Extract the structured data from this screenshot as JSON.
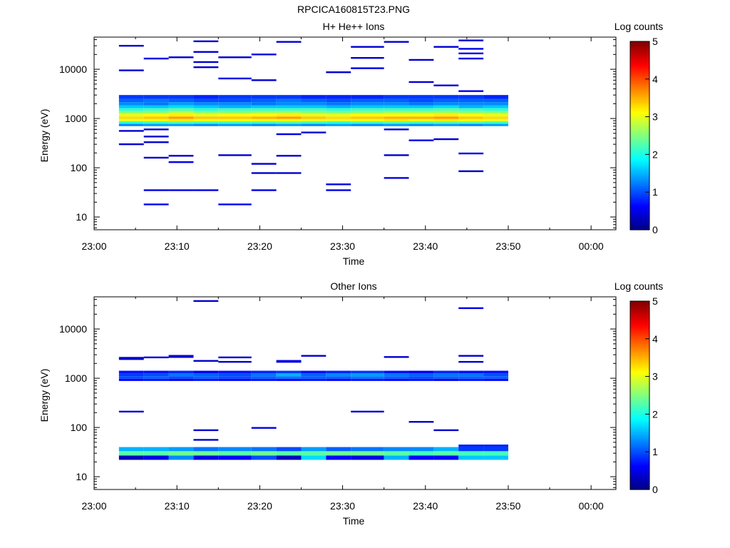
{
  "figure_title": "RPCICA160815T23.PNG",
  "chart_data": [
    {
      "type": "heatmap",
      "title": "H+ He++ Ions",
      "xlabel": "Time",
      "ylabel": "Energy (eV)",
      "colorbar_label": "Log counts",
      "x_range": [
        "23:00",
        "00:03"
      ],
      "x_ticks": [
        "23:00",
        "23:10",
        "23:20",
        "23:30",
        "23:40",
        "23:50",
        "00:00"
      ],
      "y_scale": "log",
      "y_range": [
        5.5,
        45000
      ],
      "y_ticks": [
        "10",
        "100",
        "1000",
        "10000"
      ],
      "colorbar_ticks": [
        "0",
        "1",
        "2",
        "3",
        "4",
        "5"
      ],
      "colorbar_range": [
        0,
        5
      ],
      "colormap": [
        "#000080",
        "#0000ff",
        "#0080ff",
        "#00ffff",
        "#80ff80",
        "#ffff00",
        "#ff8000",
        "#ff0000",
        "#800000"
      ],
      "time_columns": [
        "23:03",
        "23:06",
        "23:09",
        "23:12",
        "23:15",
        "23:19",
        "23:22",
        "23:25",
        "23:28",
        "23:31",
        "23:35",
        "23:38",
        "23:41",
        "23:44",
        "23:47"
      ],
      "band": {
        "energy_edges": [
          700,
          780,
          880,
          980,
          1100,
          1260,
          1420,
          1620,
          1850,
          2150,
          2500,
          3000
        ],
        "column_values": [
          [
            1.3,
            2.1,
            3.0,
            3.3,
            3.0,
            2.6,
            2.1,
            1.6,
            1.3,
            1.1,
            0.9
          ],
          [
            1.4,
            2.2,
            3.1,
            3.4,
            3.1,
            2.6,
            2.2,
            1.6,
            1.2,
            1.2,
            0.9
          ],
          [
            1.4,
            2.3,
            3.2,
            3.6,
            3.2,
            2.8,
            2.3,
            1.7,
            1.4,
            1.1,
            0.9
          ],
          [
            1.3,
            2.2,
            3.1,
            3.4,
            3.0,
            2.6,
            2.1,
            1.6,
            1.3,
            1.0,
            0.8
          ],
          [
            1.4,
            2.2,
            3.1,
            3.4,
            3.1,
            2.6,
            2.2,
            1.5,
            1.3,
            1.0,
            0.9
          ],
          [
            1.3,
            2.2,
            3.1,
            3.5,
            3.1,
            2.7,
            2.2,
            1.6,
            1.2,
            1.1,
            0.9
          ],
          [
            1.4,
            2.3,
            3.1,
            3.6,
            3.2,
            2.7,
            2.2,
            1.6,
            1.3,
            1.2,
            0.9
          ],
          [
            1.3,
            2.2,
            3.0,
            3.4,
            3.0,
            2.6,
            2.2,
            1.6,
            1.3,
            1.1,
            0.8
          ],
          [
            1.4,
            2.1,
            3.0,
            3.3,
            3.0,
            2.5,
            2.1,
            1.5,
            1.2,
            1.0,
            0.8
          ],
          [
            1.3,
            2.2,
            3.1,
            3.4,
            3.1,
            2.6,
            2.2,
            1.6,
            1.3,
            1.1,
            0.8
          ],
          [
            1.4,
            2.3,
            3.2,
            3.5,
            3.1,
            2.7,
            2.2,
            1.6,
            1.3,
            1.1,
            0.9
          ],
          [
            1.3,
            2.2,
            3.1,
            3.5,
            3.1,
            2.7,
            2.2,
            1.6,
            1.2,
            1.0,
            0.9
          ],
          [
            1.4,
            2.3,
            3.2,
            3.6,
            3.2,
            2.7,
            2.3,
            1.7,
            1.3,
            1.1,
            0.9
          ],
          [
            1.3,
            2.3,
            3.1,
            3.4,
            3.1,
            2.6,
            2.2,
            1.5,
            1.3,
            1.1,
            0.9
          ],
          [
            1.4,
            2.2,
            3.0,
            3.3,
            3.0,
            2.6,
            2.1,
            1.6,
            1.3,
            1.1,
            0.8
          ]
        ]
      },
      "sparse_cells": [
        {
          "t": 0,
          "e": 30000,
          "v": 0.4
        },
        {
          "t": 0,
          "e": 9500,
          "v": 0.4
        },
        {
          "t": 0,
          "e": 560,
          "v": 0.4
        },
        {
          "t": 0,
          "e": 300,
          "v": 0.4
        },
        {
          "t": 1,
          "e": 16500,
          "v": 0.5
        },
        {
          "t": 1,
          "e": 600,
          "v": 0.4
        },
        {
          "t": 1,
          "e": 430,
          "v": 0.4
        },
        {
          "t": 1,
          "e": 330,
          "v": 0.4
        },
        {
          "t": 1,
          "e": 160,
          "v": 0.4
        },
        {
          "t": 1,
          "e": 35,
          "v": 0.5
        },
        {
          "t": 1,
          "e": 18,
          "v": 0.6
        },
        {
          "t": 2,
          "e": 17500,
          "v": 0.4
        },
        {
          "t": 2,
          "e": 175,
          "v": 0.4
        },
        {
          "t": 2,
          "e": 130,
          "v": 0.5
        },
        {
          "t": 2,
          "e": 35,
          "v": 0.5
        },
        {
          "t": 3,
          "e": 37000,
          "v": 0.4
        },
        {
          "t": 3,
          "e": 22500,
          "v": 0.4
        },
        {
          "t": 3,
          "e": 14000,
          "v": 0.4
        },
        {
          "t": 3,
          "e": 11000,
          "v": 0.4
        },
        {
          "t": 3,
          "e": 35,
          "v": 0.5
        },
        {
          "t": 4,
          "e": 17500,
          "v": 0.4
        },
        {
          "t": 4,
          "e": 6500,
          "v": 0.5
        },
        {
          "t": 4,
          "e": 180,
          "v": 0.4
        },
        {
          "t": 4,
          "e": 18,
          "v": 0.6
        },
        {
          "t": 5,
          "e": 20000,
          "v": 0.5
        },
        {
          "t": 5,
          "e": 6000,
          "v": 0.4
        },
        {
          "t": 5,
          "e": 120,
          "v": 0.4
        },
        {
          "t": 5,
          "e": 78,
          "v": 0.4
        },
        {
          "t": 5,
          "e": 35,
          "v": 0.5
        },
        {
          "t": 6,
          "e": 36000,
          "v": 0.4
        },
        {
          "t": 6,
          "e": 480,
          "v": 0.5
        },
        {
          "t": 6,
          "e": 175,
          "v": 0.4
        },
        {
          "t": 6,
          "e": 78,
          "v": 0.4
        },
        {
          "t": 7,
          "e": 520,
          "v": 0.4
        },
        {
          "t": 8,
          "e": 8700,
          "v": 0.4
        },
        {
          "t": 8,
          "e": 46,
          "v": 0.5
        },
        {
          "t": 8,
          "e": 35,
          "v": 0.5
        },
        {
          "t": 9,
          "e": 28500,
          "v": 0.4
        },
        {
          "t": 9,
          "e": 17000,
          "v": 0.4
        },
        {
          "t": 9,
          "e": 10500,
          "v": 0.5
        },
        {
          "t": 10,
          "e": 36000,
          "v": 0.4
        },
        {
          "t": 10,
          "e": 600,
          "v": 0.4
        },
        {
          "t": 10,
          "e": 180,
          "v": 0.4
        },
        {
          "t": 10,
          "e": 62,
          "v": 0.5
        },
        {
          "t": 11,
          "e": 15500,
          "v": 0.4
        },
        {
          "t": 11,
          "e": 5500,
          "v": 0.4
        },
        {
          "t": 11,
          "e": 360,
          "v": 0.5
        },
        {
          "t": 12,
          "e": 28500,
          "v": 0.4
        },
        {
          "t": 12,
          "e": 4700,
          "v": 0.4
        },
        {
          "t": 12,
          "e": 380,
          "v": 0.4
        },
        {
          "t": 13,
          "e": 38500,
          "v": 0.4
        },
        {
          "t": 13,
          "e": 26000,
          "v": 0.5
        },
        {
          "t": 13,
          "e": 21000,
          "v": 0.5
        },
        {
          "t": 13,
          "e": 16500,
          "v": 0.5
        },
        {
          "t": 13,
          "e": 3600,
          "v": 0.5
        },
        {
          "t": 13,
          "e": 195,
          "v": 0.5
        },
        {
          "t": 13,
          "e": 85,
          "v": 0.3
        }
      ]
    },
    {
      "type": "heatmap",
      "title": "Other Ions",
      "xlabel": "Time",
      "ylabel": "Energy (eV)",
      "colorbar_label": "Log counts",
      "x_range": [
        "23:00",
        "00:03"
      ],
      "x_ticks": [
        "23:00",
        "23:10",
        "23:20",
        "23:30",
        "23:40",
        "23:50",
        "00:00"
      ],
      "y_scale": "log",
      "y_range": [
        5.5,
        45000
      ],
      "y_ticks": [
        "10",
        "100",
        "1000",
        "10000"
      ],
      "colorbar_ticks": [
        "0",
        "1",
        "2",
        "3",
        "4",
        "5"
      ],
      "colorbar_range": [
        0,
        5
      ],
      "colormap": [
        "#000080",
        "#0000ff",
        "#0080ff",
        "#00ffff",
        "#80ff80",
        "#ffff00",
        "#ff8000",
        "#ff0000",
        "#800000"
      ],
      "time_columns": [
        "23:03",
        "23:06",
        "23:09",
        "23:12",
        "23:15",
        "23:19",
        "23:22",
        "23:25",
        "23:28",
        "23:31",
        "23:35",
        "23:38",
        "23:41",
        "23:44",
        "23:47"
      ],
      "band": {
        "energy_edges": [
          880,
          980,
          1100,
          1260,
          1420
        ],
        "column_values": [
          [
            0.6,
            1.0,
            0.9,
            0.7
          ],
          [
            0.7,
            1.1,
            1.0,
            0.7
          ],
          [
            0.5,
            1.0,
            1.2,
            0.8
          ],
          [
            0.7,
            1.1,
            1.1,
            0.6
          ],
          [
            0.6,
            1.0,
            1.0,
            0.7
          ],
          [
            0.7,
            1.1,
            1.2,
            0.8
          ],
          [
            0.6,
            1.2,
            1.5,
            0.9
          ],
          [
            0.7,
            1.1,
            1.1,
            0.7
          ],
          [
            0.6,
            1.1,
            1.3,
            0.8
          ],
          [
            0.7,
            1.2,
            1.4,
            0.9
          ],
          [
            0.6,
            1.1,
            1.2,
            0.7
          ],
          [
            0.7,
            1.0,
            1.1,
            0.6
          ],
          [
            0.5,
            1.1,
            1.2,
            0.8
          ],
          [
            0.7,
            1.1,
            1.2,
            0.7
          ],
          [
            0.6,
            1.1,
            1.0,
            0.7
          ]
        ]
      },
      "low_band": {
        "energy_edges": [
          22,
          27,
          33,
          40,
          45
        ],
        "column_values": [
          [
            0.3,
            2.3,
            1.5,
            0.0
          ],
          [
            0.5,
            2.3,
            1.5,
            0.0
          ],
          [
            1.3,
            2.4,
            1.4,
            0.0
          ],
          [
            0.5,
            2.4,
            1.2,
            0.0
          ],
          [
            0.6,
            2.3,
            1.3,
            0.0
          ],
          [
            1.0,
            2.4,
            1.2,
            0.0
          ],
          [
            0.3,
            2.3,
            1.0,
            0.0
          ],
          [
            1.7,
            2.3,
            1.4,
            0.0
          ],
          [
            0.6,
            2.4,
            1.1,
            0.0
          ],
          [
            0.5,
            2.4,
            1.2,
            0.0
          ],
          [
            1.5,
            2.3,
            1.3,
            0.0
          ],
          [
            0.6,
            2.2,
            1.3,
            0.0
          ],
          [
            0.6,
            2.3,
            1.5,
            0.0
          ],
          [
            1.6,
            2.2,
            0.9,
            0.8
          ],
          [
            1.6,
            2.2,
            0.9,
            0.8
          ]
        ]
      },
      "sparse_cells": [
        {
          "t": 0,
          "e": 2600,
          "v": 0.4
        },
        {
          "t": 0,
          "e": 2450,
          "v": 0.4
        },
        {
          "t": 0,
          "e": 210,
          "v": 0.4
        },
        {
          "t": 1,
          "e": 2650,
          "v": 0.4
        },
        {
          "t": 2,
          "e": 2850,
          "v": 0.4
        },
        {
          "t": 2,
          "e": 2700,
          "v": 0.4
        },
        {
          "t": 3,
          "e": 37000,
          "v": 0.4
        },
        {
          "t": 3,
          "e": 2250,
          "v": 0.4
        },
        {
          "t": 3,
          "e": 88,
          "v": 0.4
        },
        {
          "t": 3,
          "e": 56,
          "v": 0.4
        },
        {
          "t": 4,
          "e": 2650,
          "v": 0.4
        },
        {
          "t": 4,
          "e": 2150,
          "v": 0.4
        },
        {
          "t": 5,
          "e": 98,
          "v": 0.5
        },
        {
          "t": 6,
          "e": 2250,
          "v": 0.5
        },
        {
          "t": 6,
          "e": 2150,
          "v": 0.4
        },
        {
          "t": 7,
          "e": 2850,
          "v": 0.4
        },
        {
          "t": 9,
          "e": 210,
          "v": 0.4
        },
        {
          "t": 10,
          "e": 2700,
          "v": 0.4
        },
        {
          "t": 11,
          "e": 130,
          "v": 0.4
        },
        {
          "t": 12,
          "e": 88,
          "v": 0.4
        },
        {
          "t": 13,
          "e": 26500,
          "v": 0.5
        },
        {
          "t": 13,
          "e": 2850,
          "v": 0.4
        },
        {
          "t": 13,
          "e": 2150,
          "v": 0.4
        }
      ]
    }
  ]
}
